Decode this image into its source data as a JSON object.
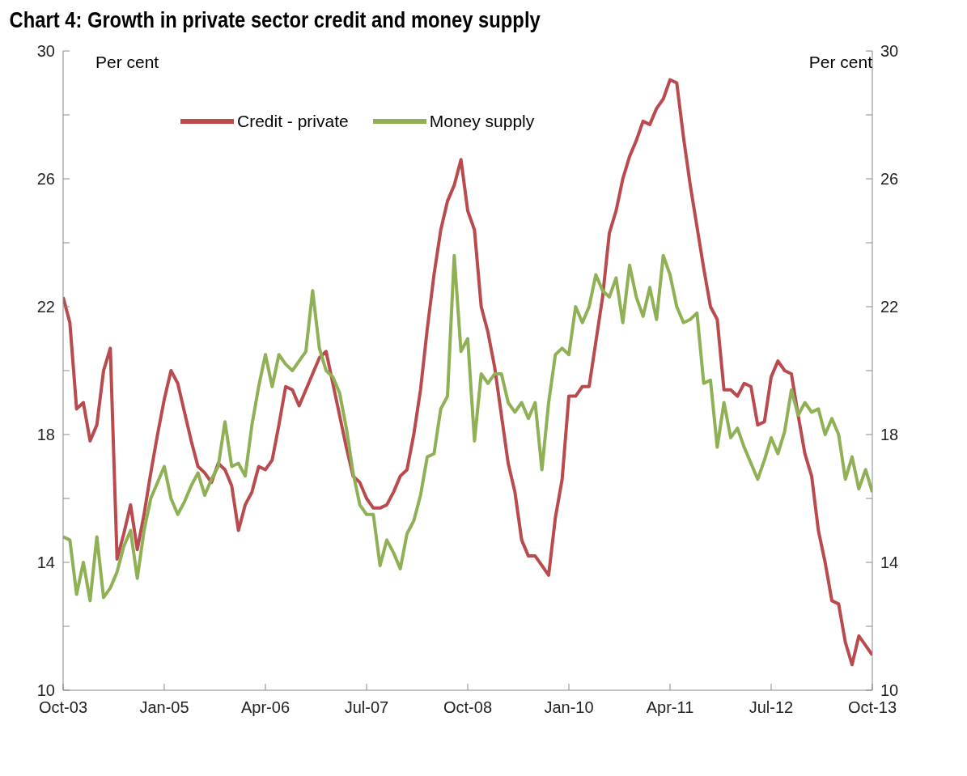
{
  "chart_data": {
    "type": "line",
    "title": "Chart 4: Growth in private sector credit and money supply",
    "ylabel": "Per cent",
    "y2label": "Per cent",
    "x": [
      "2003-10",
      "2003-11",
      "2003-12",
      "2004-01",
      "2004-02",
      "2004-03",
      "2004-04",
      "2004-05",
      "2004-06",
      "2004-07",
      "2004-08",
      "2004-09",
      "2004-10",
      "2004-11",
      "2004-12",
      "2005-01",
      "2005-02",
      "2005-03",
      "2005-04",
      "2005-05",
      "2005-06",
      "2005-07",
      "2005-08",
      "2005-09",
      "2005-10",
      "2005-11",
      "2005-12",
      "2006-01",
      "2006-02",
      "2006-03",
      "2006-04",
      "2006-05",
      "2006-06",
      "2006-07",
      "2006-08",
      "2006-09",
      "2006-10",
      "2006-11",
      "2006-12",
      "2007-01",
      "2007-02",
      "2007-03",
      "2007-04",
      "2007-05",
      "2007-06",
      "2007-07",
      "2007-08",
      "2007-09",
      "2007-10",
      "2007-11",
      "2007-12",
      "2008-01",
      "2008-02",
      "2008-03",
      "2008-04",
      "2008-05",
      "2008-06",
      "2008-07",
      "2008-08",
      "2008-09",
      "2008-10",
      "2008-11",
      "2008-12",
      "2009-01",
      "2009-02",
      "2009-03",
      "2009-04",
      "2009-05",
      "2009-06",
      "2009-07",
      "2009-08",
      "2009-09",
      "2009-10",
      "2009-11",
      "2009-12",
      "2010-01",
      "2010-02",
      "2010-03",
      "2010-04",
      "2010-05",
      "2010-06",
      "2010-07",
      "2010-08",
      "2010-09",
      "2010-10",
      "2010-11",
      "2010-12",
      "2011-01",
      "2011-02",
      "2011-03",
      "2011-04",
      "2011-05",
      "2011-06",
      "2011-07",
      "2011-08",
      "2011-09",
      "2011-10",
      "2011-11",
      "2011-12",
      "2012-01",
      "2012-02",
      "2012-03",
      "2012-04",
      "2012-05",
      "2012-06",
      "2012-07",
      "2012-08",
      "2012-09",
      "2012-10",
      "2012-11",
      "2012-12",
      "2013-01",
      "2013-02",
      "2013-03",
      "2013-04",
      "2013-05",
      "2013-06",
      "2013-07",
      "2013-08",
      "2013-09",
      "2013-10"
    ],
    "series": [
      {
        "name": "Credit - private",
        "color": "#b94a4e",
        "values": [
          22.3,
          21.5,
          18.8,
          19.0,
          17.8,
          18.3,
          20.0,
          20.7,
          14.1,
          14.9,
          15.8,
          14.4,
          15.5,
          16.8,
          18.0,
          19.1,
          20.0,
          19.6,
          18.7,
          17.8,
          17.0,
          16.8,
          16.5,
          17.1,
          16.9,
          16.4,
          15.0,
          15.8,
          16.2,
          17.0,
          16.9,
          17.2,
          18.3,
          19.5,
          19.4,
          18.9,
          19.4,
          19.9,
          20.4,
          20.6,
          19.6,
          18.6,
          17.6,
          16.7,
          16.5,
          16.0,
          15.7,
          15.7,
          15.8,
          16.2,
          16.7,
          16.9,
          18.0,
          19.4,
          21.3,
          23.0,
          24.4,
          25.3,
          25.8,
          26.6,
          25.0,
          24.4,
          22.0,
          21.2,
          20.1,
          18.6,
          17.1,
          16.2,
          14.7,
          14.2,
          14.2,
          13.9,
          13.6,
          15.4,
          16.6,
          19.2,
          19.2,
          19.5,
          19.5,
          20.9,
          22.3,
          24.3,
          25.0,
          26.0,
          26.7,
          27.2,
          27.8,
          27.7,
          28.2,
          28.5,
          29.1,
          29.0,
          27.3,
          25.8,
          24.5,
          23.2,
          22.0,
          21.6,
          19.4,
          19.4,
          19.2,
          19.6,
          19.5,
          18.3,
          18.4,
          19.8,
          20.3,
          20.0,
          19.9,
          18.6,
          17.4,
          16.7,
          15.0,
          14.0,
          12.8,
          12.7,
          11.5,
          10.8,
          11.7,
          11.4,
          11.1
        ]
      },
      {
        "name": "Money supply",
        "color": "#8fb055",
        "values": [
          14.8,
          14.7,
          13.0,
          14.0,
          12.8,
          14.8,
          12.9,
          13.2,
          13.7,
          14.5,
          15.0,
          13.5,
          15.0,
          16.0,
          16.5,
          17.0,
          16.0,
          15.5,
          15.9,
          16.4,
          16.8,
          16.1,
          16.6,
          17.0,
          18.4,
          17.0,
          17.1,
          16.7,
          18.3,
          19.5,
          20.5,
          19.5,
          20.5,
          20.2,
          20.0,
          20.3,
          20.6,
          22.5,
          20.7,
          20.0,
          19.8,
          19.3,
          18.2,
          16.8,
          15.8,
          15.5,
          15.5,
          13.9,
          14.7,
          14.3,
          13.8,
          14.9,
          15.3,
          16.1,
          17.3,
          17.4,
          18.8,
          19.2,
          23.6,
          20.6,
          21.0,
          17.8,
          19.9,
          19.6,
          19.9,
          19.9,
          19.0,
          18.7,
          19.0,
          18.5,
          19.0,
          16.9,
          19.0,
          20.5,
          20.7,
          20.5,
          22.0,
          21.5,
          22.0,
          23.0,
          22.5,
          22.3,
          22.9,
          21.5,
          23.3,
          22.3,
          21.7,
          22.6,
          21.6,
          23.6,
          23.0,
          22.0,
          21.5,
          21.6,
          21.8,
          19.6,
          19.7,
          17.6,
          19.0,
          17.9,
          18.2,
          17.6,
          17.1,
          16.6,
          17.2,
          17.9,
          17.4,
          18.1,
          19.4,
          18.6,
          19.0,
          18.7,
          18.8,
          18.0,
          18.5,
          18.0,
          16.6,
          17.3,
          16.3,
          16.9,
          16.2
        ]
      }
    ],
    "xlim": [
      "2003-10",
      "2013-10"
    ],
    "xticks": [
      {
        "value": "2003-10",
        "label": "Oct-03"
      },
      {
        "value": "2005-01",
        "label": "Jan-05"
      },
      {
        "value": "2006-04",
        "label": "Apr-06"
      },
      {
        "value": "2007-07",
        "label": "Jul-07"
      },
      {
        "value": "2008-10",
        "label": "Oct-08"
      },
      {
        "value": "2010-01",
        "label": "Jan-10"
      },
      {
        "value": "2011-04",
        "label": "Apr-11"
      },
      {
        "value": "2012-07",
        "label": "Jul-12"
      },
      {
        "value": "2013-10",
        "label": "Oct-13"
      }
    ],
    "ylim": [
      10,
      30
    ],
    "yticks": [
      10,
      {
        "value": 12,
        "label": null
      },
      14,
      {
        "value": 16,
        "label": null
      },
      18,
      {
        "value": 20,
        "label": null
      },
      22,
      {
        "value": 24,
        "label": null
      },
      26,
      {
        "value": 28,
        "label": null
      },
      30
    ],
    "y2lim": [
      10,
      30
    ],
    "y2ticks": [
      10,
      {
        "value": 12,
        "label": null
      },
      14,
      {
        "value": 16,
        "label": null
      },
      18,
      {
        "value": 20,
        "label": null
      },
      22,
      {
        "value": 24,
        "label": null
      },
      26,
      {
        "value": 28,
        "label": null
      },
      30
    ],
    "legend": "top",
    "marker": "none",
    "line_style": "solid"
  }
}
